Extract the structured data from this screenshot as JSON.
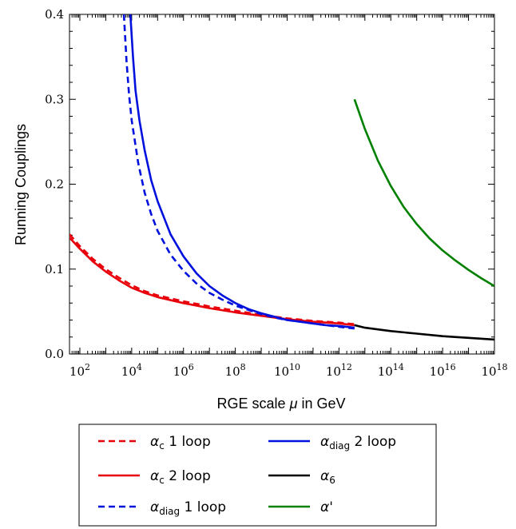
{
  "chart_data": {
    "type": "line",
    "title": "",
    "xlabel": {
      "prefix": "RGE scale ",
      "symbol": "μ",
      "suffix": " in GeV"
    },
    "ylabel": "Running Couplings",
    "xscale": "log",
    "xlim_log10": [
      1.6,
      18
    ],
    "ylim": [
      0,
      0.4
    ],
    "grid": false,
    "legend_position": "bottom-center",
    "x_ticks": [
      {
        "base": "10",
        "exp": "2"
      },
      {
        "base": "10",
        "exp": "4"
      },
      {
        "base": "10",
        "exp": "6"
      },
      {
        "base": "10",
        "exp": "8"
      },
      {
        "base": "10",
        "exp": "10"
      },
      {
        "base": "10",
        "exp": "12"
      },
      {
        "base": "10",
        "exp": "14"
      },
      {
        "base": "10",
        "exp": "16"
      },
      {
        "base": "10",
        "exp": "18"
      }
    ],
    "y_ticks": [
      "0.0",
      "0.1",
      "0.2",
      "0.3",
      "0.4"
    ],
    "series": [
      {
        "symbol": "α",
        "sub": "c",
        "label": " 1 loop",
        "color": "#e8000b",
        "dash": "dashed",
        "points": [
          [
            1.6,
            0.141
          ],
          [
            2,
            0.127
          ],
          [
            2.5,
            0.112
          ],
          [
            3,
            0.1
          ],
          [
            3.5,
            0.09
          ],
          [
            4,
            0.081
          ],
          [
            4.5,
            0.074
          ],
          [
            5,
            0.069
          ],
          [
            6,
            0.062
          ],
          [
            7,
            0.056
          ],
          [
            8,
            0.051
          ],
          [
            9,
            0.046
          ],
          [
            10,
            0.042
          ],
          [
            11,
            0.039
          ],
          [
            12,
            0.037
          ],
          [
            12.6,
            0.035
          ]
        ]
      },
      {
        "symbol": "α",
        "sub": "c",
        "label": " 2 loop",
        "color": "#e8000b",
        "dash": "solid",
        "points": [
          [
            1.6,
            0.137
          ],
          [
            2,
            0.124
          ],
          [
            2.5,
            0.109
          ],
          [
            3,
            0.097
          ],
          [
            3.5,
            0.087
          ],
          [
            4,
            0.078
          ],
          [
            4.5,
            0.072
          ],
          [
            5,
            0.067
          ],
          [
            6,
            0.06
          ],
          [
            7,
            0.054
          ],
          [
            8,
            0.049
          ],
          [
            9,
            0.045
          ],
          [
            10,
            0.041
          ],
          [
            11,
            0.038
          ],
          [
            12,
            0.036
          ],
          [
            12.6,
            0.034
          ]
        ]
      },
      {
        "symbol": "α",
        "sub": "diag",
        "label": " 1 loop",
        "color": "#0011dd",
        "dash": "dashed",
        "points": [
          [
            3.7,
            0.4
          ],
          [
            3.8,
            0.345
          ],
          [
            3.9,
            0.305
          ],
          [
            4,
            0.275
          ],
          [
            4.25,
            0.225
          ],
          [
            4.5,
            0.19
          ],
          [
            4.75,
            0.165
          ],
          [
            5,
            0.145
          ],
          [
            5.5,
            0.117
          ],
          [
            6,
            0.098
          ],
          [
            6.5,
            0.083
          ],
          [
            7,
            0.072
          ],
          [
            7.5,
            0.064
          ],
          [
            8,
            0.057
          ],
          [
            8.5,
            0.052
          ],
          [
            9,
            0.047
          ],
          [
            9.5,
            0.043
          ],
          [
            10,
            0.04
          ],
          [
            10.5,
            0.038
          ],
          [
            11,
            0.036
          ],
          [
            11.5,
            0.034
          ],
          [
            12,
            0.032
          ],
          [
            12.6,
            0.03
          ]
        ]
      },
      {
        "symbol": "α",
        "sub": "diag",
        "label": " 2 loop",
        "color": "#0011dd",
        "dash": "solid",
        "points": [
          [
            3.95,
            0.4
          ],
          [
            4.05,
            0.35
          ],
          [
            4.15,
            0.31
          ],
          [
            4.3,
            0.275
          ],
          [
            4.5,
            0.24
          ],
          [
            4.75,
            0.205
          ],
          [
            5,
            0.18
          ],
          [
            5.5,
            0.141
          ],
          [
            6,
            0.115
          ],
          [
            6.5,
            0.095
          ],
          [
            7,
            0.08
          ],
          [
            7.5,
            0.069
          ],
          [
            8,
            0.06
          ],
          [
            8.5,
            0.053
          ],
          [
            9,
            0.048
          ],
          [
            9.5,
            0.044
          ],
          [
            10,
            0.04
          ],
          [
            10.5,
            0.038
          ],
          [
            11,
            0.036
          ],
          [
            11.5,
            0.034
          ],
          [
            12,
            0.033
          ],
          [
            12.6,
            0.031
          ]
        ]
      },
      {
        "symbol": "α",
        "sub": "6",
        "label": "",
        "color": "#000000",
        "dash": "solid",
        "points": [
          [
            12.6,
            0.034
          ],
          [
            13,
            0.031
          ],
          [
            14,
            0.027
          ],
          [
            15,
            0.024
          ],
          [
            16,
            0.021
          ],
          [
            17,
            0.019
          ],
          [
            18,
            0.017
          ]
        ]
      },
      {
        "symbol": "α",
        "sub": "",
        "label": "'",
        "color": "#008000",
        "dash": "solid",
        "points": [
          [
            12.6,
            0.3
          ],
          [
            13,
            0.265
          ],
          [
            13.5,
            0.228
          ],
          [
            14,
            0.198
          ],
          [
            14.5,
            0.173
          ],
          [
            15,
            0.153
          ],
          [
            15.5,
            0.136
          ],
          [
            16,
            0.122
          ],
          [
            16.5,
            0.11
          ],
          [
            17,
            0.099
          ],
          [
            17.5,
            0.089
          ],
          [
            18,
            0.08
          ]
        ]
      }
    ]
  }
}
